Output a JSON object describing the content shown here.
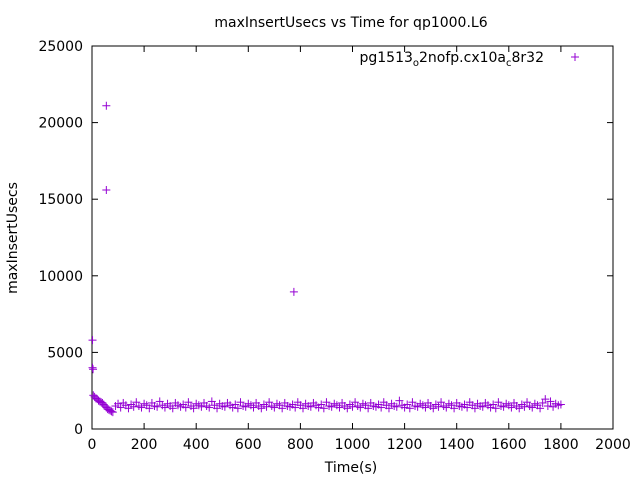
{
  "chart_data": {
    "type": "scatter",
    "title": "maxInsertUsecs vs Time for qp1000.L6",
    "xlabel": "Time(s)",
    "ylabel": "maxInsertUsecs",
    "xlim": [
      0,
      2000
    ],
    "ylim": [
      0,
      25000
    ],
    "x_ticks": [
      0,
      200,
      400,
      600,
      800,
      1000,
      1200,
      1400,
      1600,
      1800,
      2000
    ],
    "y_ticks": [
      0,
      5000,
      10000,
      15000,
      20000,
      25000
    ],
    "grid": false,
    "legend_position": "top-right",
    "marker": "plus",
    "color": "#9400d3",
    "legend": {
      "base": "pg1513",
      "sub1": "o",
      "mid": "2nofp.cx10a",
      "sub2": "c",
      "end": "8r32"
    },
    "series": [
      {
        "points": [
          [
            2,
            5800
          ],
          [
            2,
            4000
          ],
          [
            4,
            3900
          ],
          [
            5,
            2200
          ],
          [
            10,
            2100
          ],
          [
            15,
            2000
          ],
          [
            20,
            1950
          ],
          [
            25,
            1850
          ],
          [
            30,
            1800
          ],
          [
            35,
            1750
          ],
          [
            40,
            1700
          ],
          [
            45,
            1600
          ],
          [
            50,
            1500
          ],
          [
            55,
            1400
          ],
          [
            60,
            1300
          ],
          [
            65,
            1250
          ],
          [
            70,
            1200
          ],
          [
            75,
            1150
          ],
          [
            80,
            1100
          ],
          [
            55,
            21100
          ],
          [
            55,
            15600
          ],
          [
            775,
            8950
          ],
          [
            90,
            1500
          ],
          [
            100,
            1650
          ],
          [
            110,
            1400
          ],
          [
            120,
            1700
          ],
          [
            130,
            1550
          ],
          [
            140,
            1350
          ],
          [
            150,
            1600
          ],
          [
            160,
            1450
          ],
          [
            170,
            1750
          ],
          [
            180,
            1500
          ],
          [
            190,
            1400
          ],
          [
            200,
            1650
          ],
          [
            210,
            1550
          ],
          [
            220,
            1350
          ],
          [
            230,
            1700
          ],
          [
            240,
            1500
          ],
          [
            250,
            1450
          ],
          [
            260,
            1800
          ],
          [
            270,
            1550
          ],
          [
            280,
            1400
          ],
          [
            290,
            1650
          ],
          [
            300,
            1500
          ],
          [
            310,
            1350
          ],
          [
            320,
            1700
          ],
          [
            330,
            1550
          ],
          [
            340,
            1450
          ],
          [
            350,
            1600
          ],
          [
            360,
            1400
          ],
          [
            370,
            1750
          ],
          [
            380,
            1500
          ],
          [
            390,
            1350
          ],
          [
            400,
            1650
          ],
          [
            410,
            1550
          ],
          [
            420,
            1450
          ],
          [
            430,
            1700
          ],
          [
            440,
            1500
          ],
          [
            450,
            1400
          ],
          [
            460,
            1800
          ],
          [
            470,
            1550
          ],
          [
            480,
            1350
          ],
          [
            490,
            1650
          ],
          [
            500,
            1500
          ],
          [
            510,
            1450
          ],
          [
            520,
            1700
          ],
          [
            530,
            1550
          ],
          [
            540,
            1400
          ],
          [
            550,
            1600
          ],
          [
            560,
            1350
          ],
          [
            570,
            1750
          ],
          [
            580,
            1500
          ],
          [
            590,
            1450
          ],
          [
            600,
            1650
          ],
          [
            610,
            1550
          ],
          [
            620,
            1400
          ],
          [
            630,
            1700
          ],
          [
            640,
            1500
          ],
          [
            650,
            1350
          ],
          [
            660,
            1600
          ],
          [
            670,
            1450
          ],
          [
            680,
            1750
          ],
          [
            690,
            1500
          ],
          [
            700,
            1400
          ],
          [
            710,
            1650
          ],
          [
            720,
            1550
          ],
          [
            730,
            1350
          ],
          [
            740,
            1700
          ],
          [
            750,
            1500
          ],
          [
            760,
            1450
          ],
          [
            770,
            1600
          ],
          [
            780,
            1400
          ],
          [
            790,
            1750
          ],
          [
            800,
            1550
          ],
          [
            810,
            1350
          ],
          [
            820,
            1650
          ],
          [
            830,
            1500
          ],
          [
            840,
            1450
          ],
          [
            850,
            1700
          ],
          [
            860,
            1550
          ],
          [
            870,
            1400
          ],
          [
            880,
            1600
          ],
          [
            890,
            1350
          ],
          [
            900,
            1750
          ],
          [
            910,
            1500
          ],
          [
            920,
            1450
          ],
          [
            930,
            1650
          ],
          [
            940,
            1550
          ],
          [
            950,
            1400
          ],
          [
            960,
            1700
          ],
          [
            970,
            1500
          ],
          [
            980,
            1350
          ],
          [
            990,
            1600
          ],
          [
            1000,
            1450
          ],
          [
            1010,
            1750
          ],
          [
            1020,
            1500
          ],
          [
            1030,
            1400
          ],
          [
            1040,
            1650
          ],
          [
            1050,
            1550
          ],
          [
            1060,
            1350
          ],
          [
            1070,
            1700
          ],
          [
            1080,
            1500
          ],
          [
            1090,
            1450
          ],
          [
            1100,
            1600
          ],
          [
            1110,
            1400
          ],
          [
            1120,
            1750
          ],
          [
            1130,
            1550
          ],
          [
            1140,
            1350
          ],
          [
            1150,
            1650
          ],
          [
            1160,
            1500
          ],
          [
            1170,
            1450
          ],
          [
            1180,
            1850
          ],
          [
            1190,
            1550
          ],
          [
            1200,
            1400
          ],
          [
            1210,
            1600
          ],
          [
            1220,
            1350
          ],
          [
            1230,
            1750
          ],
          [
            1240,
            1500
          ],
          [
            1250,
            1450
          ],
          [
            1260,
            1650
          ],
          [
            1270,
            1550
          ],
          [
            1280,
            1400
          ],
          [
            1290,
            1700
          ],
          [
            1300,
            1500
          ],
          [
            1310,
            1350
          ],
          [
            1320,
            1600
          ],
          [
            1330,
            1450
          ],
          [
            1340,
            1750
          ],
          [
            1350,
            1500
          ],
          [
            1360,
            1400
          ],
          [
            1370,
            1650
          ],
          [
            1380,
            1550
          ],
          [
            1390,
            1350
          ],
          [
            1400,
            1700
          ],
          [
            1410,
            1500
          ],
          [
            1420,
            1450
          ],
          [
            1430,
            1600
          ],
          [
            1440,
            1400
          ],
          [
            1450,
            1750
          ],
          [
            1460,
            1550
          ],
          [
            1470,
            1350
          ],
          [
            1480,
            1650
          ],
          [
            1490,
            1500
          ],
          [
            1500,
            1450
          ],
          [
            1510,
            1700
          ],
          [
            1520,
            1550
          ],
          [
            1530,
            1400
          ],
          [
            1540,
            1600
          ],
          [
            1550,
            1350
          ],
          [
            1560,
            1750
          ],
          [
            1570,
            1500
          ],
          [
            1580,
            1450
          ],
          [
            1590,
            1650
          ],
          [
            1600,
            1550
          ],
          [
            1610,
            1400
          ],
          [
            1620,
            1700
          ],
          [
            1630,
            1500
          ],
          [
            1640,
            1350
          ],
          [
            1650,
            1600
          ],
          [
            1660,
            1450
          ],
          [
            1670,
            1750
          ],
          [
            1680,
            1500
          ],
          [
            1690,
            1400
          ],
          [
            1700,
            1650
          ],
          [
            1710,
            1550
          ],
          [
            1720,
            1350
          ],
          [
            1730,
            1700
          ],
          [
            1740,
            1950
          ],
          [
            1750,
            1500
          ],
          [
            1760,
            1800
          ],
          [
            1770,
            1450
          ],
          [
            1780,
            1650
          ],
          [
            1790,
            1550
          ],
          [
            1800,
            1600
          ]
        ]
      }
    ]
  }
}
